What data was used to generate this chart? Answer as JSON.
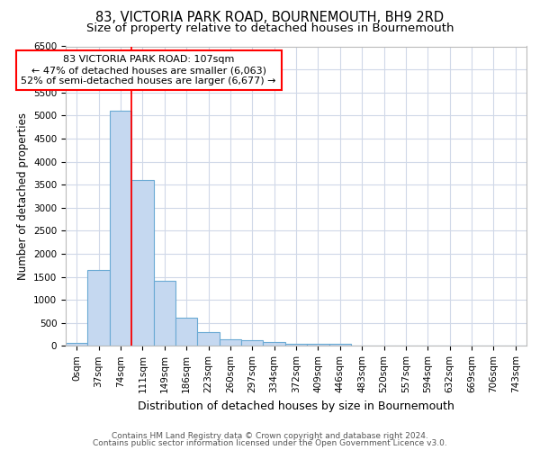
{
  "title": "83, VICTORIA PARK ROAD, BOURNEMOUTH, BH9 2RD",
  "subtitle": "Size of property relative to detached houses in Bournemouth",
  "xlabel": "Distribution of detached houses by size in Bournemouth",
  "ylabel": "Number of detached properties",
  "footer1": "Contains HM Land Registry data © Crown copyright and database right 2024.",
  "footer2": "Contains public sector information licensed under the Open Government Licence v3.0.",
  "bin_labels": [
    "0sqm",
    "37sqm",
    "74sqm",
    "111sqm",
    "149sqm",
    "186sqm",
    "223sqm",
    "260sqm",
    "297sqm",
    "334sqm",
    "372sqm",
    "409sqm",
    "446sqm",
    "483sqm",
    "520sqm",
    "557sqm",
    "594sqm",
    "632sqm",
    "669sqm",
    "706sqm",
    "743sqm"
  ],
  "bar_values": [
    70,
    1650,
    5100,
    3600,
    1420,
    620,
    300,
    150,
    130,
    80,
    50,
    50,
    50,
    0,
    0,
    0,
    0,
    0,
    0,
    0,
    0
  ],
  "bar_color": "#c5d8f0",
  "bar_edgecolor": "#6aaad4",
  "annotation_label": "83 VICTORIA PARK ROAD: 107sqm",
  "annotation_line1": "← 47% of detached houses are smaller (6,063)",
  "annotation_line2": "52% of semi-detached houses are larger (6,677) →",
  "annotation_box_facecolor": "white",
  "annotation_box_edgecolor": "red",
  "vline_color": "red",
  "vline_x_bin": 3,
  "ylim_max": 6500,
  "bg_color": "#ffffff",
  "plot_bg_color": "#ffffff",
  "grid_color": "#d0d8e8",
  "title_fontsize": 10.5,
  "subtitle_fontsize": 9.5,
  "tick_fontsize": 7.5,
  "ylabel_fontsize": 8.5,
  "xlabel_fontsize": 9,
  "annotation_fontsize": 8,
  "footer_fontsize": 6.5
}
